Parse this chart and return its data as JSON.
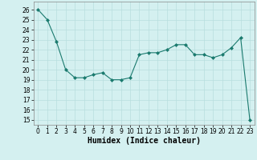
{
  "x": [
    0,
    1,
    2,
    3,
    4,
    5,
    6,
    7,
    8,
    9,
    10,
    11,
    12,
    13,
    14,
    15,
    16,
    17,
    18,
    19,
    20,
    21,
    22,
    23
  ],
  "y": [
    26,
    25,
    22.8,
    20,
    19.2,
    19.2,
    19.5,
    19.7,
    19,
    19,
    19.2,
    21.5,
    21.7,
    21.7,
    22.0,
    22.5,
    22.5,
    21.5,
    21.5,
    21.2,
    21.5,
    22.2,
    23.2,
    15
  ],
  "line_color": "#1a7a6e",
  "marker": "D",
  "marker_size": 2.0,
  "bg_color": "#d4f0f0",
  "grid_color": "#b8dede",
  "xlabel": "Humidex (Indice chaleur)",
  "xlim": [
    -0.5,
    23.5
  ],
  "ylim": [
    14.5,
    26.8
  ],
  "yticks": [
    15,
    16,
    17,
    18,
    19,
    20,
    21,
    22,
    23,
    24,
    25,
    26
  ],
  "xticks": [
    0,
    1,
    2,
    3,
    4,
    5,
    6,
    7,
    8,
    9,
    10,
    11,
    12,
    13,
    14,
    15,
    16,
    17,
    18,
    19,
    20,
    21,
    22,
    23
  ],
  "tick_fontsize": 5.5,
  "xlabel_fontsize": 7.0,
  "line_width": 0.8
}
